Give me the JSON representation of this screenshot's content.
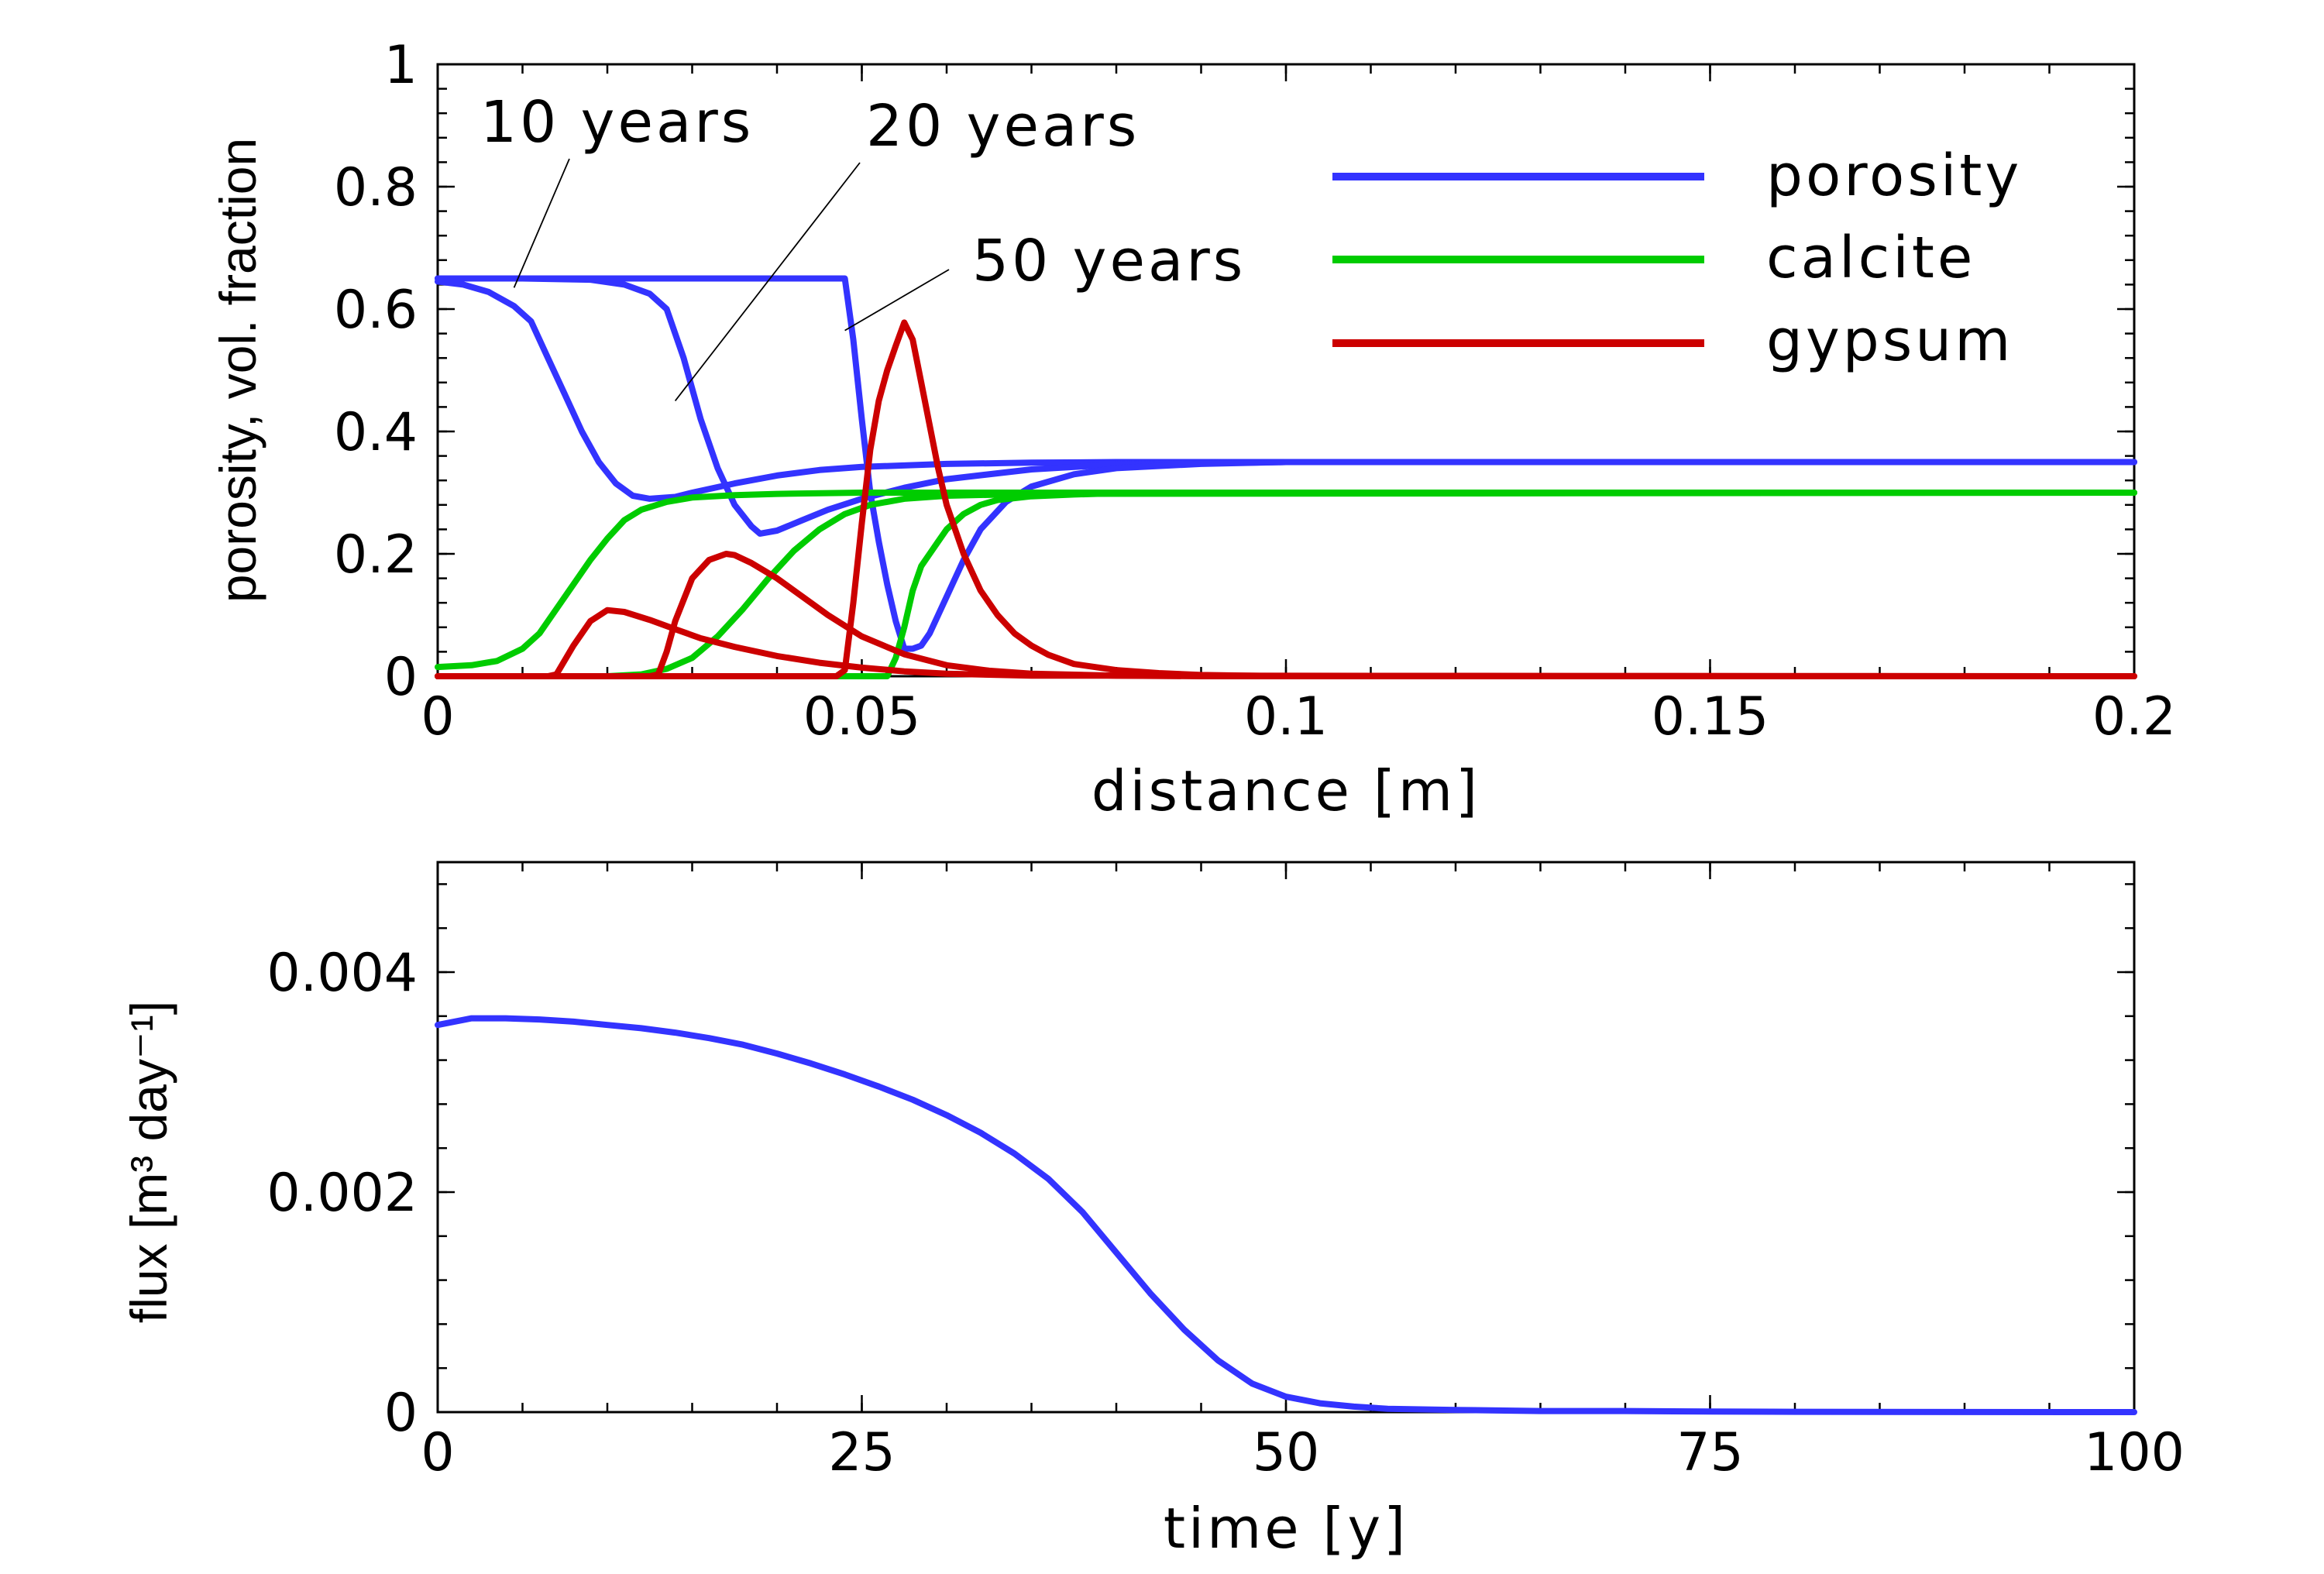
{
  "colors": {
    "porosity": "#3333ff",
    "calcite": "#00cc00",
    "gypsum": "#cc0000"
  },
  "chart_data": [
    {
      "type": "line",
      "xlabel": "distance [m]",
      "ylabel": "porosity, vol. fraction",
      "xlim": [
        0,
        0.2
      ],
      "ylim": [
        0,
        1
      ],
      "xticks": [
        0,
        0.05,
        0.1,
        0.15,
        0.2
      ],
      "xtick_labels": [
        "0",
        "0.05",
        "0.1",
        "0.15",
        "0.2"
      ],
      "yticks": [
        0,
        0.2,
        0.4,
        0.6,
        0.8,
        1
      ],
      "ytick_labels": [
        "0",
        "0.2",
        "0.4",
        "0.6",
        "0.8",
        "1"
      ],
      "grid": false,
      "legend_position": "top-right",
      "legend": [
        {
          "name": "porosity",
          "color": "#3333ff"
        },
        {
          "name": "calcite",
          "color": "#00cc00"
        },
        {
          "name": "gypsum",
          "color": "#cc0000"
        }
      ],
      "annotations": [
        {
          "text": "10 years",
          "target": [
            0.009,
            0.635
          ]
        },
        {
          "text": "20 years",
          "target": [
            0.028,
            0.45
          ]
        },
        {
          "text": "50 years",
          "target": [
            0.048,
            0.565
          ]
        }
      ],
      "series": [
        {
          "time": "10 years",
          "variable": "porosity",
          "x": [
            0,
            0.003,
            0.006,
            0.009,
            0.011,
            0.013,
            0.015,
            0.017,
            0.019,
            0.021,
            0.023,
            0.025,
            0.028,
            0.03,
            0.035,
            0.04,
            0.045,
            0.05,
            0.06,
            0.07,
            0.08,
            0.1,
            0.2
          ],
          "y": [
            0.645,
            0.64,
            0.628,
            0.605,
            0.58,
            0.52,
            0.46,
            0.4,
            0.35,
            0.315,
            0.295,
            0.29,
            0.293,
            0.3,
            0.315,
            0.328,
            0.337,
            0.342,
            0.347,
            0.349,
            0.35,
            0.35,
            0.35
          ]
        },
        {
          "time": "20 years",
          "variable": "porosity",
          "x": [
            0,
            0.01,
            0.018,
            0.022,
            0.025,
            0.027,
            0.029,
            0.031,
            0.033,
            0.035,
            0.037,
            0.038,
            0.04,
            0.043,
            0.046,
            0.05,
            0.055,
            0.06,
            0.07,
            0.08,
            0.1,
            0.2
          ],
          "y": [
            0.65,
            0.65,
            0.648,
            0.64,
            0.625,
            0.6,
            0.52,
            0.42,
            0.34,
            0.28,
            0.245,
            0.233,
            0.238,
            0.255,
            0.272,
            0.29,
            0.308,
            0.322,
            0.338,
            0.346,
            0.35,
            0.35
          ]
        },
        {
          "time": "50 years",
          "variable": "porosity",
          "x": [
            0,
            0.02,
            0.04,
            0.047,
            0.048,
            0.049,
            0.05,
            0.051,
            0.052,
            0.053,
            0.054,
            0.055,
            0.056,
            0.057,
            0.058,
            0.06,
            0.062,
            0.064,
            0.067,
            0.07,
            0.075,
            0.08,
            0.09,
            0.1,
            0.2
          ],
          "y": [
            0.65,
            0.65,
            0.65,
            0.65,
            0.65,
            0.55,
            0.42,
            0.3,
            0.22,
            0.15,
            0.09,
            0.045,
            0.045,
            0.05,
            0.07,
            0.13,
            0.19,
            0.24,
            0.285,
            0.31,
            0.33,
            0.34,
            0.347,
            0.35,
            0.35
          ]
        },
        {
          "time": "10 years",
          "variable": "calcite",
          "x": [
            0,
            0.004,
            0.007,
            0.01,
            0.012,
            0.014,
            0.016,
            0.018,
            0.02,
            0.022,
            0.024,
            0.027,
            0.03,
            0.035,
            0.04,
            0.05,
            0.06,
            0.2
          ],
          "y": [
            0.015,
            0.018,
            0.025,
            0.045,
            0.07,
            0.11,
            0.15,
            0.19,
            0.225,
            0.255,
            0.272,
            0.285,
            0.292,
            0.296,
            0.298,
            0.3,
            0.3,
            0.3
          ]
        },
        {
          "time": "20 years",
          "variable": "calcite",
          "x": [
            0,
            0.02,
            0.024,
            0.027,
            0.03,
            0.033,
            0.036,
            0.039,
            0.042,
            0.045,
            0.048,
            0.051,
            0.055,
            0.06,
            0.07,
            0.2
          ],
          "y": [
            0,
            0,
            0.003,
            0.012,
            0.03,
            0.065,
            0.11,
            0.16,
            0.205,
            0.24,
            0.265,
            0.28,
            0.29,
            0.295,
            0.298,
            0.3
          ]
        },
        {
          "time": "50 years",
          "variable": "calcite",
          "x": [
            0,
            0.05,
            0.053,
            0.054,
            0.055,
            0.056,
            0.057,
            0.058,
            0.059,
            0.06,
            0.062,
            0.064,
            0.066,
            0.07,
            0.075,
            0.08,
            0.09,
            0.2
          ],
          "y": [
            0,
            0,
            0,
            0.03,
            0.08,
            0.14,
            0.18,
            0.2,
            0.22,
            0.24,
            0.265,
            0.28,
            0.288,
            0.294,
            0.297,
            0.299,
            0.3,
            0.3
          ]
        },
        {
          "time": "10 years",
          "variable": "gypsum",
          "x": [
            0,
            0.012,
            0.013,
            0.014,
            0.016,
            0.018,
            0.02,
            0.022,
            0.025,
            0.028,
            0.031,
            0.035,
            0.04,
            0.045,
            0.05,
            0.055,
            0.06,
            0.07,
            0.2
          ],
          "y": [
            0,
            0,
            0,
            0.003,
            0.05,
            0.09,
            0.108,
            0.105,
            0.092,
            0.077,
            0.062,
            0.048,
            0.033,
            0.022,
            0.014,
            0.008,
            0.004,
            0.001,
            0
          ]
        },
        {
          "time": "20 years",
          "variable": "gypsum",
          "x": [
            0,
            0.025,
            0.026,
            0.027,
            0.028,
            0.03,
            0.032,
            0.034,
            0.035,
            0.037,
            0.04,
            0.043,
            0.046,
            0.05,
            0.055,
            0.06,
            0.065,
            0.07,
            0.08,
            0.09,
            0.2
          ],
          "y": [
            0,
            0,
            0.003,
            0.04,
            0.09,
            0.16,
            0.19,
            0.2,
            0.198,
            0.185,
            0.16,
            0.13,
            0.1,
            0.065,
            0.036,
            0.018,
            0.009,
            0.004,
            0.001,
            0,
            0
          ]
        },
        {
          "time": "50 years",
          "variable": "gypsum",
          "x": [
            0,
            0.047,
            0.048,
            0.049,
            0.05,
            0.051,
            0.052,
            0.053,
            0.054,
            0.055,
            0.056,
            0.057,
            0.058,
            0.059,
            0.06,
            0.062,
            0.064,
            0.066,
            0.068,
            0.07,
            0.072,
            0.075,
            0.08,
            0.085,
            0.09,
            0.1,
            0.2
          ],
          "y": [
            0,
            0,
            0.01,
            0.12,
            0.25,
            0.37,
            0.45,
            0.5,
            0.54,
            0.578,
            0.55,
            0.48,
            0.41,
            0.34,
            0.28,
            0.2,
            0.14,
            0.1,
            0.07,
            0.05,
            0.035,
            0.02,
            0.01,
            0.005,
            0.002,
            0,
            0
          ]
        }
      ]
    },
    {
      "type": "line",
      "xlabel": "time [y]",
      "ylabel": "flux [m³ day⁻¹]",
      "xlim": [
        0,
        100
      ],
      "ylim": [
        0,
        0.005
      ],
      "xticks": [
        0,
        25,
        50,
        75,
        100
      ],
      "xtick_labels": [
        "0",
        "25",
        "50",
        "75",
        "100"
      ],
      "yticks": [
        0,
        0.002,
        0.004
      ],
      "ytick_labels": [
        "0",
        "0.002",
        "0.004"
      ],
      "grid": false,
      "series": [
        {
          "color": "#3333ff",
          "x": [
            0,
            2,
            4,
            6,
            8,
            10,
            12,
            14,
            16,
            18,
            20,
            22,
            24,
            26,
            28,
            30,
            32,
            34,
            36,
            38,
            40,
            42,
            44,
            46,
            48,
            50,
            52,
            54,
            56,
            60,
            65,
            70,
            75,
            80,
            90,
            100
          ],
          "y": [
            0.00352,
            0.00358,
            0.00358,
            0.00357,
            0.00355,
            0.00352,
            0.00349,
            0.00345,
            0.0034,
            0.00334,
            0.00326,
            0.00317,
            0.00307,
            0.00296,
            0.00284,
            0.0027,
            0.00254,
            0.00235,
            0.00212,
            0.00182,
            0.00145,
            0.00108,
            0.00075,
            0.00047,
            0.00026,
            0.00014,
            8e-05,
            5e-05,
            3e-05,
            2e-05,
            1e-05,
            1e-05,
            5e-06,
            3e-06,
            1e-06,
            0
          ]
        }
      ]
    }
  ]
}
